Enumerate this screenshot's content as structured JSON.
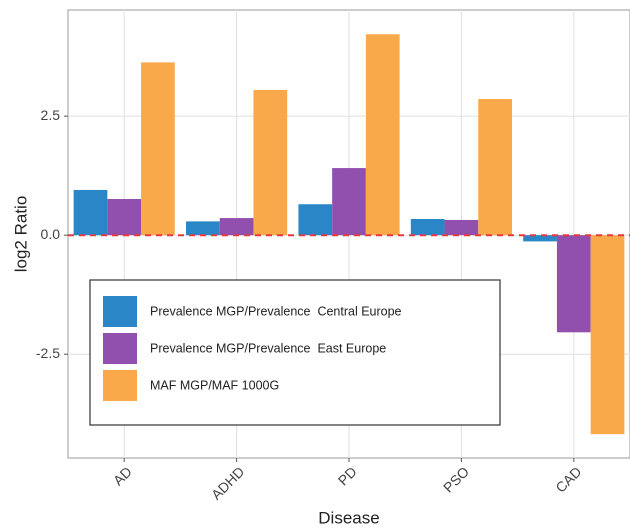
{
  "chart_data": {
    "type": "bar",
    "x_label": "Disease",
    "y_label": "log2 Ratio",
    "categories": [
      "AD",
      "ADHD",
      "PD",
      "PSO",
      "CAD"
    ],
    "series": [
      {
        "name": "Prevalence MGP/Prevalence  Central Europe",
        "color": "#2b86c8",
        "values": [
          0.95,
          0.29,
          0.65,
          0.34,
          -0.13
        ]
      },
      {
        "name": "Prevalence MGP/Prevalence  East Europe",
        "color": "#9150ae",
        "values": [
          0.76,
          0.36,
          1.41,
          0.32,
          -2.04
        ]
      },
      {
        "name": "MAF MGP/MAF 1000G",
        "color": "#f9a84a",
        "values": [
          3.63,
          3.05,
          4.22,
          2.86,
          -4.18
        ]
      }
    ],
    "ylim": [
      -4.68,
      4.73
    ],
    "yticks": [
      -2.5,
      {
        "value": 0,
        "label": "0.0"
      },
      2.5
    ],
    "grid": true,
    "reference_line": 0,
    "reference_line_color": "#e8383d",
    "legend_position": "bottom-left"
  }
}
